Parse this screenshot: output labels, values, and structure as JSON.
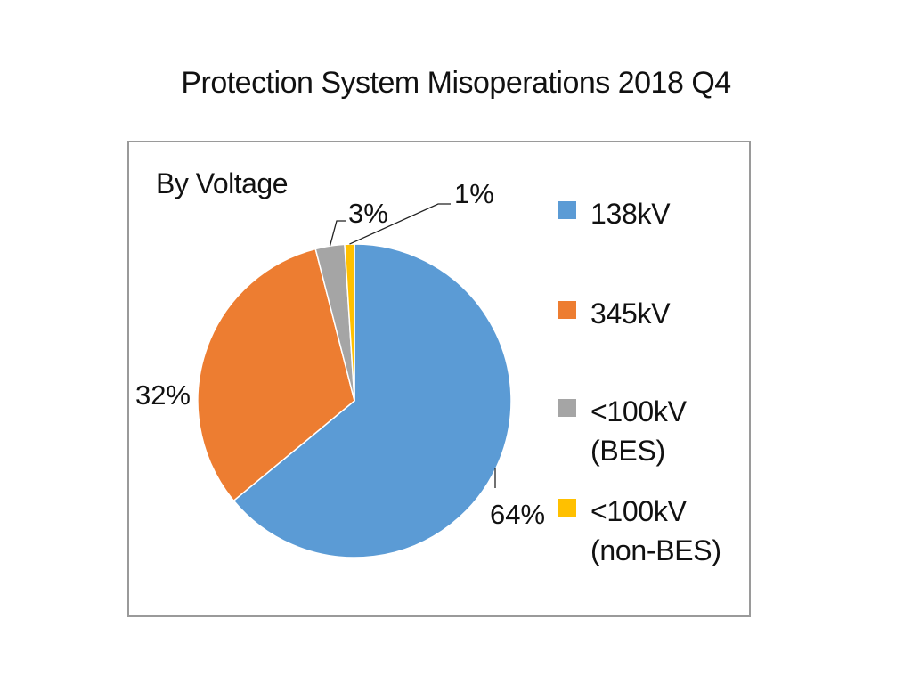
{
  "chart_data": {
    "type": "pie",
    "title": "Protection System Misoperations 2018 Q4",
    "subtitle": "By Voltage",
    "categories": [
      "138kV",
      "345kV",
      "<100kV (BES)",
      "<100kV (non-BES)"
    ],
    "legend_lines": [
      [
        "138kV"
      ],
      [
        "345kV"
      ],
      [
        "<100kV",
        "(BES)"
      ],
      [
        "<100kV",
        "(non-BES)"
      ]
    ],
    "values": [
      64,
      32,
      3,
      1
    ],
    "data_labels": [
      "64%",
      "32%",
      "3%",
      "1%"
    ],
    "colors": [
      "#5b9bd5",
      "#ed7d31",
      "#a5a5a5",
      "#ffc000"
    ],
    "legend_position": "right"
  }
}
